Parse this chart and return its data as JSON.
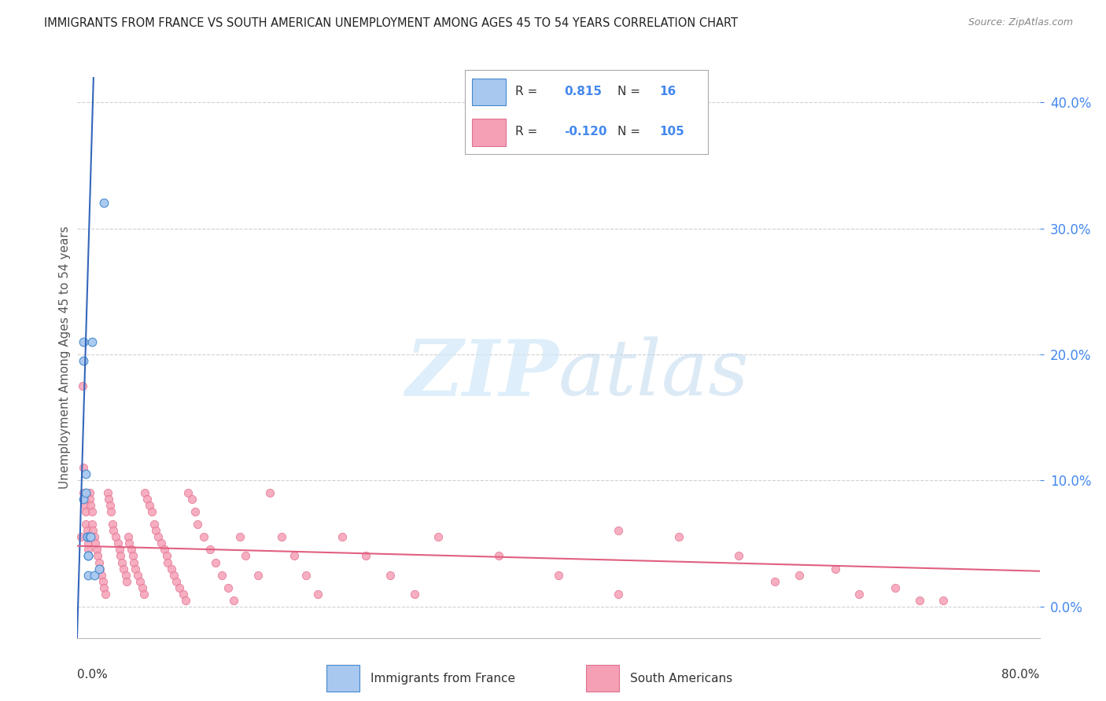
{
  "title": "IMMIGRANTS FROM FRANCE VS SOUTH AMERICAN UNEMPLOYMENT AMONG AGES 45 TO 54 YEARS CORRELATION CHART",
  "source": "Source: ZipAtlas.com",
  "ylabel": "Unemployment Among Ages 45 to 54 years",
  "watermark": "ZIPatlas",
  "france_scatter_x": [
    0.012,
    0.022,
    0.005,
    0.005,
    0.005,
    0.007,
    0.007,
    0.008,
    0.008,
    0.009,
    0.009,
    0.009,
    0.01,
    0.011,
    0.014,
    0.018
  ],
  "france_scatter_y": [
    0.21,
    0.32,
    0.21,
    0.195,
    0.085,
    0.105,
    0.09,
    0.055,
    0.055,
    0.04,
    0.04,
    0.025,
    0.055,
    0.055,
    0.025,
    0.03
  ],
  "south_scatter_x": [
    0.003,
    0.004,
    0.005,
    0.005,
    0.006,
    0.006,
    0.007,
    0.007,
    0.008,
    0.008,
    0.009,
    0.009,
    0.01,
    0.01,
    0.011,
    0.012,
    0.012,
    0.013,
    0.014,
    0.015,
    0.016,
    0.017,
    0.018,
    0.019,
    0.02,
    0.021,
    0.022,
    0.023,
    0.025,
    0.026,
    0.027,
    0.028,
    0.029,
    0.03,
    0.032,
    0.034,
    0.035,
    0.036,
    0.037,
    0.038,
    0.04,
    0.041,
    0.042,
    0.043,
    0.045,
    0.046,
    0.047,
    0.048,
    0.05,
    0.052,
    0.054,
    0.055,
    0.056,
    0.058,
    0.06,
    0.062,
    0.064,
    0.065,
    0.067,
    0.07,
    0.072,
    0.074,
    0.075,
    0.078,
    0.08,
    0.082,
    0.085,
    0.088,
    0.09,
    0.092,
    0.095,
    0.098,
    0.1,
    0.105,
    0.11,
    0.115,
    0.12,
    0.125,
    0.13,
    0.135,
    0.14,
    0.15,
    0.16,
    0.17,
    0.18,
    0.19,
    0.2,
    0.22,
    0.24,
    0.26,
    0.28,
    0.3,
    0.35,
    0.4,
    0.45,
    0.5,
    0.55,
    0.6,
    0.65,
    0.7,
    0.58,
    0.63,
    0.68,
    0.72,
    0.45
  ],
  "south_scatter_y": [
    0.055,
    0.175,
    0.11,
    0.09,
    0.085,
    0.08,
    0.075,
    0.065,
    0.06,
    0.055,
    0.05,
    0.045,
    0.09,
    0.085,
    0.08,
    0.075,
    0.065,
    0.06,
    0.055,
    0.05,
    0.045,
    0.04,
    0.035,
    0.03,
    0.025,
    0.02,
    0.015,
    0.01,
    0.09,
    0.085,
    0.08,
    0.075,
    0.065,
    0.06,
    0.055,
    0.05,
    0.045,
    0.04,
    0.035,
    0.03,
    0.025,
    0.02,
    0.055,
    0.05,
    0.045,
    0.04,
    0.035,
    0.03,
    0.025,
    0.02,
    0.015,
    0.01,
    0.09,
    0.085,
    0.08,
    0.075,
    0.065,
    0.06,
    0.055,
    0.05,
    0.045,
    0.04,
    0.035,
    0.03,
    0.025,
    0.02,
    0.015,
    0.01,
    0.005,
    0.09,
    0.085,
    0.075,
    0.065,
    0.055,
    0.045,
    0.035,
    0.025,
    0.015,
    0.005,
    0.055,
    0.04,
    0.025,
    0.09,
    0.055,
    0.04,
    0.025,
    0.01,
    0.055,
    0.04,
    0.025,
    0.01,
    0.055,
    0.04,
    0.025,
    0.01,
    0.055,
    0.04,
    0.025,
    0.01,
    0.005,
    0.02,
    0.03,
    0.015,
    0.005,
    0.06
  ],
  "blue_line_x": [
    -0.002,
    0.014
  ],
  "blue_line_y": [
    -0.08,
    0.44
  ],
  "pink_line_x": [
    0.0,
    0.8
  ],
  "pink_line_y": [
    0.048,
    0.028
  ],
  "xlim": [
    0.0,
    0.8
  ],
  "ylim": [
    -0.025,
    0.42
  ],
  "yticks": [
    0.0,
    0.1,
    0.2,
    0.3,
    0.4
  ],
  "ytick_labels": [
    "0.0%",
    "10.0%",
    "20.0%",
    "30.0%",
    "40.0%"
  ],
  "background_color": "#ffffff",
  "grid_color": "#cccccc",
  "title_color": "#222222",
  "france_dot_color": "#a8c8f0",
  "france_edge_color": "#4488cc",
  "france_line_color": "#3366bb",
  "south_dot_color": "#f5a0b5",
  "south_edge_color": "#e07090",
  "south_line_color": "#e06080",
  "yticklabel_color": "#4488ee",
  "legend_R1": "0.815",
  "legend_N1": "16",
  "legend_R2": "-0.120",
  "legend_N2": "105",
  "legend_label1": "Immigrants from France",
  "legend_label2": "South Americans"
}
